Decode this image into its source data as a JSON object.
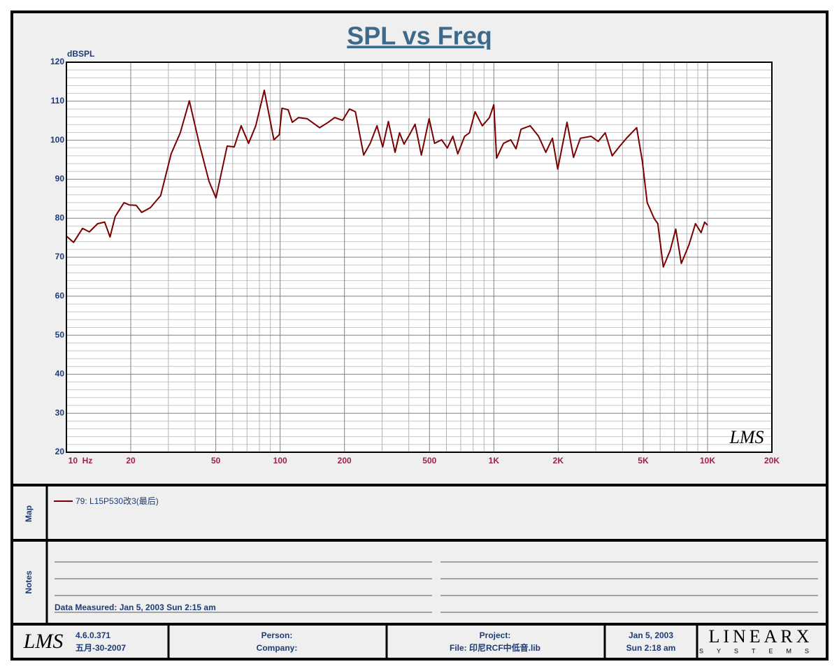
{
  "chart_data": {
    "type": "line",
    "title": "SPL vs Freq",
    "y_label": "dBSPL",
    "watermark": "LMS",
    "xscale": "log",
    "xlim": [
      10,
      20000
    ],
    "ylim": [
      20,
      120
    ],
    "xticks": [
      {
        "value": 10,
        "label": "10  Hz"
      },
      20,
      50,
      100,
      200,
      500,
      {
        "value": 1000,
        "label": "1K"
      },
      {
        "value": 2000,
        "label": "2K"
      },
      {
        "value": 5000,
        "label": "5K"
      },
      {
        "value": 10000,
        "label": "10K"
      },
      {
        "value": 20000,
        "label": "20K"
      }
    ],
    "xgrid_minor": [
      30,
      40,
      60,
      70,
      80,
      90,
      300,
      400,
      600,
      700,
      800,
      900,
      3000,
      4000,
      6000,
      7000,
      8000,
      9000
    ],
    "yticks": [
      20,
      30,
      40,
      50,
      60,
      70,
      80,
      90,
      100,
      110,
      120
    ],
    "ygrid_minor": [
      22,
      24,
      26,
      28,
      32,
      34,
      36,
      38,
      42,
      44,
      46,
      48,
      52,
      54,
      56,
      58,
      62,
      64,
      66,
      68,
      72,
      74,
      76,
      78,
      82,
      84,
      86,
      88,
      92,
      94,
      96,
      98,
      102,
      104,
      106,
      108,
      112,
      114,
      116,
      118
    ],
    "grid": true,
    "x": [
      10,
      10.8,
      11.9,
      12.8,
      14,
      15.1,
      16,
      16.9,
      18.6,
      19.7,
      21.2,
      22.5,
      24.7,
      27.6,
      30.9,
      34.1,
      37.6,
      41.8,
      46.5,
      50.1,
      56.5,
      61,
      65.7,
      71.2,
      76.9,
      84.3,
      93.5,
      99.1,
      102,
      109,
      114,
      122,
      134,
      153,
      168,
      180,
      196,
      211,
      225,
      246,
      264,
      284,
      302,
      321,
      345,
      362,
      380,
      403,
      428,
      458,
      498,
      528,
      570,
      606,
      643,
      678,
      730,
      769,
      817,
      883,
      954,
      1000,
      1030,
      1110,
      1200,
      1270,
      1340,
      1480,
      1620,
      1750,
      1880,
      1990,
      2200,
      2360,
      2540,
      2850,
      3080,
      3320,
      3580,
      3860,
      4190,
      4660,
      4950,
      5220,
      5630,
      5850,
      6210,
      6690,
      7100,
      7540,
      8190,
      8780,
      9330,
      9690,
      10000
    ],
    "series": [
      {
        "name": "79: L15P530改3(最后)",
        "color": "#7a0000",
        "values": [
          75.4,
          73.8,
          77.4,
          76.5,
          78.6,
          79,
          75.2,
          80.4,
          84,
          83.4,
          83.3,
          81.5,
          82.7,
          85.8,
          96.5,
          101.9,
          110.1,
          99.2,
          89.4,
          85.2,
          98.5,
          98.3,
          103.7,
          99.2,
          103.7,
          112.8,
          100.1,
          101.4,
          108.2,
          107.8,
          104.6,
          105.8,
          105.5,
          103.2,
          104.6,
          105.8,
          105.1,
          108,
          107.3,
          96.2,
          99.2,
          103.7,
          98.3,
          104.8,
          96.9,
          101.9,
          99,
          101.4,
          104.1,
          96.2,
          105.5,
          99.2,
          100.1,
          98,
          101,
          96.5,
          101,
          101.9,
          107.3,
          103.7,
          105.8,
          109.1,
          95.4,
          99.2,
          100.1,
          97.8,
          102.8,
          103.7,
          101,
          96.9,
          100.5,
          92.6,
          104.6,
          95.6,
          100.5,
          101,
          99.7,
          101.9,
          96,
          98.3,
          100.6,
          103.2,
          94.7,
          84,
          79.9,
          78.6,
          67.5,
          71.8,
          77.2,
          68.4,
          73.2,
          78.6,
          76.3,
          79,
          78.2
        ]
      }
    ]
  },
  "map": {
    "label": "Map"
  },
  "notes": {
    "label": "Notes",
    "measured": "Data Measured: Jan  5, 2003  Sun  2:15 am"
  },
  "footer": {
    "logo": "LMS",
    "version": "4.6.0.371",
    "version_date": "五月-30-2007",
    "person": "Person:",
    "company": "Company:",
    "project": "Project:",
    "file": "File: 印尼RCF中低音.lib",
    "date": "Jan  5, 2003",
    "time": "Sun  2:18 am",
    "brand": "LINEARX",
    "brand_sub": "SYSTEMS"
  }
}
